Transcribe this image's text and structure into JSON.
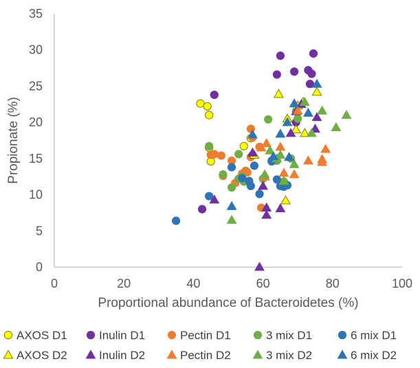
{
  "chart_data": {
    "type": "scatter",
    "title": "",
    "xlabel": "Proportional abundance of Bacteroidetes (%)",
    "ylabel": "Propionate (%)",
    "xlim": [
      0,
      100
    ],
    "ylim": [
      0,
      35
    ],
    "x_ticks": [
      "0",
      "20",
      "40",
      "60",
      "80",
      "100"
    ],
    "y_ticks": [
      "0",
      "5",
      "10",
      "15",
      "20",
      "25",
      "30",
      "35"
    ],
    "grid": false,
    "legend_position": "bottom",
    "series": [
      {
        "name": "AXOS D1",
        "marker": "circle",
        "color": "#FFFF00",
        "stroke": "#7F7F00",
        "points": [
          [
            42,
            22.6
          ],
          [
            44,
            22.2
          ],
          [
            44.5,
            21
          ],
          [
            44.5,
            16.5
          ],
          [
            45,
            14.6
          ],
          [
            54.5,
            16.7
          ],
          [
            56.5,
            17.8
          ],
          [
            62.5,
            14.7
          ]
        ]
      },
      {
        "name": "Inulin D1",
        "marker": "circle",
        "color": "#7030A0",
        "stroke": "#7030A0",
        "points": [
          [
            42.5,
            8
          ],
          [
            46,
            23.8
          ],
          [
            64,
            26.6
          ],
          [
            65,
            29.2
          ],
          [
            69,
            27
          ],
          [
            69.5,
            20
          ],
          [
            73,
            27.2
          ],
          [
            73.5,
            25.3
          ],
          [
            74,
            26.7
          ],
          [
            74.5,
            29.5
          ]
        ]
      },
      {
        "name": "Pectin D1",
        "marker": "circle",
        "color": "#ED7D31",
        "stroke": "#ED7D31",
        "points": [
          [
            45,
            15.5
          ],
          [
            46,
            15.6
          ],
          [
            48,
            15.4
          ],
          [
            48.5,
            12.6
          ],
          [
            51,
            14.7
          ],
          [
            52,
            11.6
          ],
          [
            54,
            12.9
          ],
          [
            55,
            13.3
          ],
          [
            55.5,
            13.1
          ],
          [
            56.5,
            19.1
          ],
          [
            56.5,
            15.2
          ],
          [
            57,
            17.9
          ],
          [
            59,
            16.6
          ],
          [
            59.5,
            8.2
          ]
        ]
      },
      {
        "name": "3 mix D1",
        "marker": "circle",
        "color": "#70AD47",
        "stroke": "#70AD47",
        "points": [
          [
            44.5,
            16.7
          ],
          [
            48.5,
            12.8
          ],
          [
            51,
            11
          ],
          [
            53,
            15.6
          ],
          [
            53,
            12.2
          ],
          [
            54,
            12.5
          ],
          [
            54.5,
            11.8
          ],
          [
            56,
            11.7
          ],
          [
            57,
            15.5
          ],
          [
            60,
            12.2
          ],
          [
            61.5,
            20.4
          ],
          [
            64,
            14.7
          ],
          [
            66,
            11.8
          ],
          [
            68,
            15
          ],
          [
            69.5,
            21.5
          ],
          [
            70,
            20.5
          ]
        ]
      },
      {
        "name": "6 mix D1",
        "marker": "circle",
        "color": "#2E75B6",
        "stroke": "#2E75B6",
        "points": [
          [
            35,
            6.4
          ],
          [
            44.5,
            9.8
          ],
          [
            51,
            13.8
          ],
          [
            54,
            12.3
          ],
          [
            56,
            11.9
          ],
          [
            56.5,
            11.2
          ],
          [
            57.5,
            14
          ],
          [
            59,
            10.1
          ],
          [
            62.5,
            14.6
          ],
          [
            64,
            12.1
          ],
          [
            65,
            11.2
          ],
          [
            66,
            11.1
          ],
          [
            67,
            11.3
          ]
        ]
      },
      {
        "name": "AXOS D2",
        "marker": "triangle",
        "color": "#FFFF00",
        "stroke": "#7F7F00",
        "points": [
          [
            57.5,
            15.5
          ],
          [
            64.5,
            23.9
          ],
          [
            66.5,
            9.2
          ],
          [
            67,
            20.5
          ],
          [
            69.5,
            19
          ],
          [
            70,
            22.3
          ],
          [
            71.5,
            22.8
          ],
          [
            72,
            18.5
          ],
          [
            75.5,
            24.2
          ]
        ]
      },
      {
        "name": "Inulin D2",
        "marker": "triangle",
        "color": "#7030A0",
        "stroke": "#7030A0",
        "points": [
          [
            46,
            9.3
          ],
          [
            57,
            15.8
          ],
          [
            59,
            0
          ],
          [
            60,
            11.2
          ],
          [
            61,
            7.2
          ],
          [
            61,
            8.2
          ],
          [
            65,
            8.1
          ],
          [
            68,
            18.5
          ],
          [
            69.5,
            21.5
          ],
          [
            71,
            22.5
          ],
          [
            75,
            19.1
          ],
          [
            75.5,
            20.7
          ]
        ]
      },
      {
        "name": "Pectin D2",
        "marker": "triangle",
        "color": "#ED7D31",
        "stroke": "#ED7D31",
        "points": [
          [
            59.5,
            16.5
          ],
          [
            60.5,
            12.5
          ],
          [
            61,
            17.1
          ],
          [
            65,
            16.6
          ],
          [
            66,
            13
          ],
          [
            69,
            12.8
          ],
          [
            70,
            21.6
          ],
          [
            73,
            14.7
          ],
          [
            77,
            14.5
          ],
          [
            77,
            14.9
          ],
          [
            78,
            16.3
          ]
        ]
      },
      {
        "name": "3 mix D2",
        "marker": "triangle",
        "color": "#70AD47",
        "stroke": "#70AD47",
        "points": [
          [
            51,
            6.5
          ],
          [
            60.5,
            12.8
          ],
          [
            62,
            16.1
          ],
          [
            64,
            15
          ],
          [
            65,
            15.5
          ],
          [
            66,
            11.9
          ],
          [
            69,
            14.2
          ],
          [
            72,
            22.8
          ],
          [
            74,
            18.5
          ],
          [
            77,
            21.6
          ],
          [
            81,
            19.3
          ],
          [
            84,
            21
          ]
        ]
      },
      {
        "name": "6 mix D2",
        "marker": "triangle",
        "color": "#2E75B6",
        "stroke": "#2E75B6",
        "points": [
          [
            51,
            8.4
          ],
          [
            57,
            18.3
          ],
          [
            63,
            15.3
          ],
          [
            65,
            18.4
          ],
          [
            67,
            20
          ],
          [
            67.5,
            15.2
          ],
          [
            69,
            22.6
          ],
          [
            73,
            21.3
          ],
          [
            75.5,
            25.3
          ]
        ]
      }
    ]
  }
}
